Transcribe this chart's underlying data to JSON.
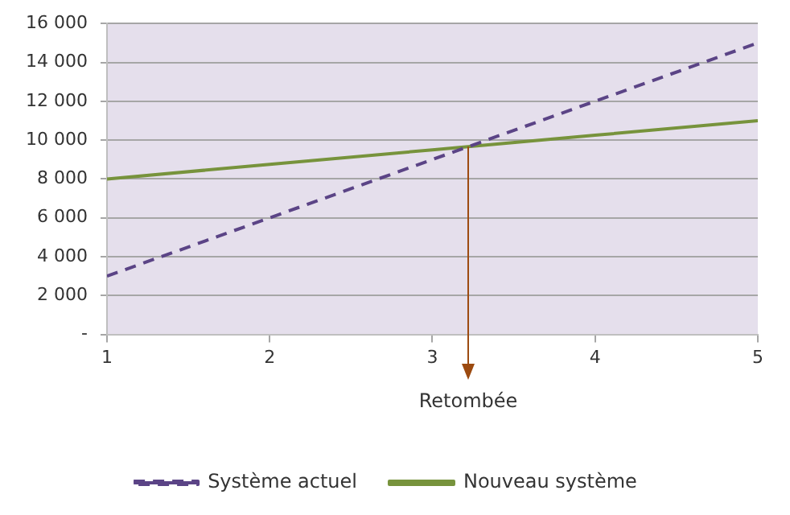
{
  "chart_data": {
    "type": "line",
    "x": [
      1,
      2,
      3,
      4,
      5
    ],
    "series": [
      {
        "name": "Système actuel",
        "color": "#5b4486",
        "values": [
          3000,
          6000,
          9000,
          12000,
          15000
        ],
        "line_style": "dashed"
      },
      {
        "name": "Nouveau système",
        "color": "#77933c",
        "values": [
          8000,
          8750,
          9500,
          10250,
          11000
        ],
        "line_style": "solid"
      }
    ],
    "xlim": [
      1,
      5
    ],
    "xticks": [
      1,
      2,
      3,
      4,
      5
    ],
    "ylim": [
      0,
      16000
    ],
    "yticks": [
      {
        "value": 0,
        "label": "-"
      },
      {
        "value": 2000,
        "label": "2 000"
      },
      {
        "value": 4000,
        "label": "4 000"
      },
      {
        "value": 6000,
        "label": "6 000"
      },
      {
        "value": 8000,
        "label": "8 000"
      },
      {
        "value": 10000,
        "label": "10 000"
      },
      {
        "value": 12000,
        "label": "12 000"
      },
      {
        "value": 14000,
        "label": "14 000"
      },
      {
        "value": 16000,
        "label": "16 000"
      }
    ],
    "grid": "y",
    "legend": "bottom",
    "marker": "none",
    "ref_lines": [
      {
        "axis": "x",
        "value": 3.22,
        "label": "Retombée",
        "color": "#9c4a10"
      }
    ]
  }
}
